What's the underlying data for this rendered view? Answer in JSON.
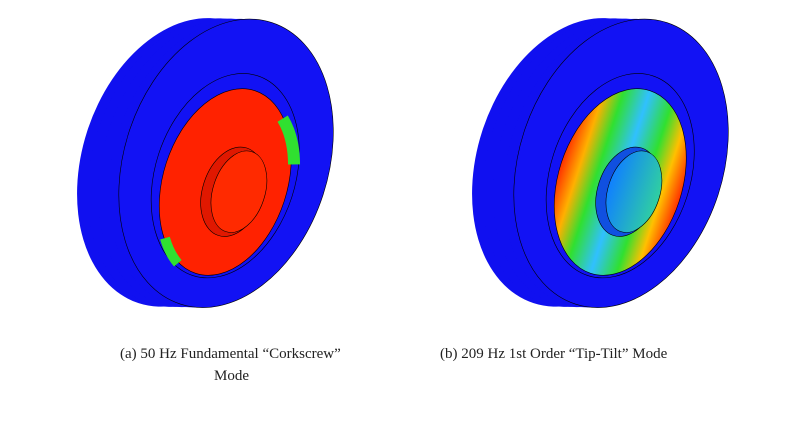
{
  "figures": [
    {
      "label": "(a)",
      "caption_line1": "50 Hz Fundamental “Corkscrew”",
      "caption_line2": "Mode"
    },
    {
      "label": "(b)",
      "caption_line1": "209 Hz 1st Order “Tip-Tilt” Mode"
    }
  ]
}
